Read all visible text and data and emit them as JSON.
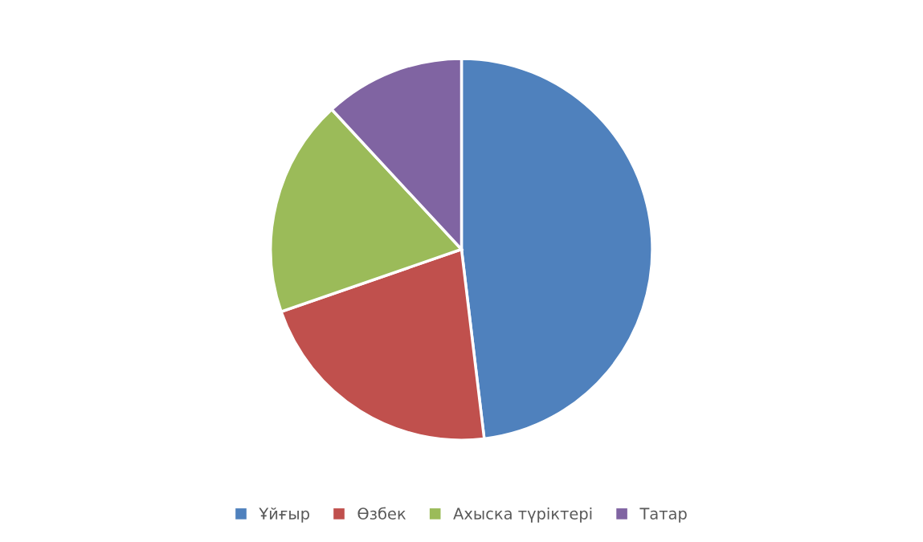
{
  "chart_data": {
    "type": "pie",
    "categories": [
      "Ұйғыр",
      "Өзбек",
      "Ахыска түріктері",
      "Татар"
    ],
    "values": [
      48.1,
      21.6,
      18.4,
      11.9
    ],
    "colors": [
      "#4f81bd",
      "#c0504d",
      "#9bbb59",
      "#8064a2"
    ],
    "legend": "bottom"
  }
}
